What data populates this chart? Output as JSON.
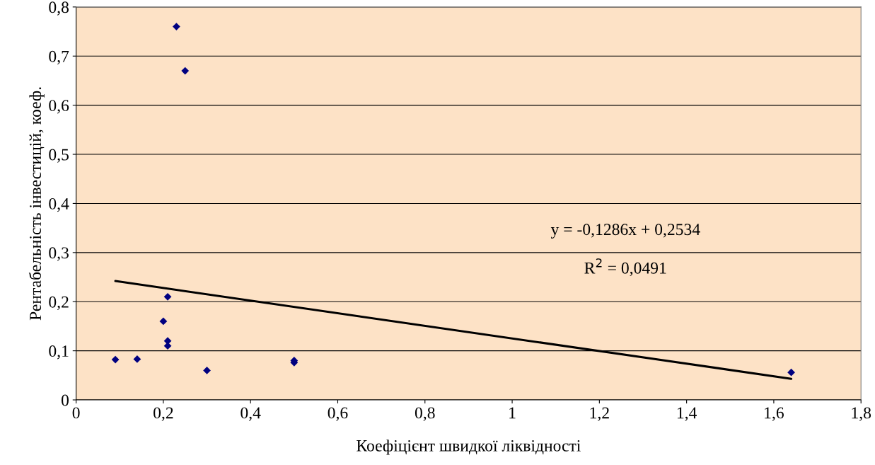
{
  "chart_data": {
    "type": "scatter",
    "xlabel": "Коефіцієнт швидкої ліквідності",
    "ylabel": "Рентабельність інвестицій, коеф.",
    "series": [
      {
        "color": "#000080",
        "marker": "diamond",
        "x": [
          0.09,
          0.14,
          0.2,
          0.21,
          0.21,
          0.21,
          0.23,
          0.25,
          0.3,
          0.5,
          0.5,
          1.64
        ],
        "values": [
          0.082,
          0.083,
          0.16,
          0.21,
          0.12,
          0.11,
          0.76,
          0.67,
          0.06,
          0.08,
          0.076,
          0.056
        ]
      },
      {
        "type": "line",
        "color": "#000000",
        "marker": "none",
        "x": [
          0.09,
          1.64
        ],
        "values": [
          0.242,
          0.043
        ]
      }
    ],
    "annotations": [
      "y = -0,1286x + 0,2534",
      "R$^{2}$ = 0,0491"
    ],
    "xlim": [
      0,
      1.8
    ],
    "xticks": [
      0,
      {
        "value": 0.2,
        "label": "0,2"
      },
      {
        "value": 0.4,
        "label": "0,4"
      },
      {
        "value": 0.6,
        "label": "0,6"
      },
      {
        "value": 0.8,
        "label": "0,8"
      },
      1,
      {
        "value": 1.2,
        "label": "1,2"
      },
      {
        "value": 1.4,
        "label": "1,4"
      },
      {
        "value": 1.6,
        "label": "1,6"
      },
      {
        "value": 1.8,
        "label": "1,8"
      }
    ],
    "ylim": [
      0,
      0.8
    ],
    "yticks": [
      0,
      {
        "value": 0.1,
        "label": "0,1"
      },
      {
        "value": 0.2,
        "label": "0,2"
      },
      {
        "value": 0.3,
        "label": "0,3"
      },
      {
        "value": 0.4,
        "label": "0,4"
      },
      {
        "value": 0.5,
        "label": "0,5"
      },
      {
        "value": 0.6,
        "label": "0,6"
      },
      {
        "value": 0.7,
        "label": "0,7"
      },
      {
        "value": 0.8,
        "label": "0,8"
      }
    ],
    "grid": "y",
    "legend": false
  }
}
